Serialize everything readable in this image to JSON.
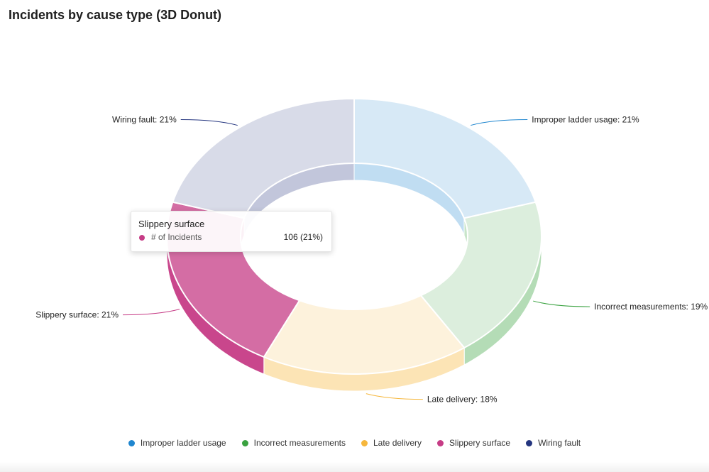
{
  "title": "Incidents by cause type (3D Donut)",
  "tooltip": {
    "title": "Slippery surface",
    "series_label": "# of Incidents",
    "value_text": "106  (21%)",
    "color": "#c63c86"
  },
  "chart_data": {
    "type": "pie",
    "variant": "3d-donut",
    "title": "Incidents by cause type (3D Donut)",
    "series_name": "# of Incidents",
    "slices": [
      {
        "name": "Improper ladder usage",
        "percent": 21,
        "label": "Improper ladder usage: 21%",
        "color": "#1f86cf"
      },
      {
        "name": "Incorrect measurements",
        "percent": 19,
        "label": "Incorrect measurements: 19%",
        "color": "#3aa240"
      },
      {
        "name": "Late delivery",
        "percent": 18,
        "label": "Late delivery: 18%",
        "color": "#f6b73c"
      },
      {
        "name": "Slippery surface",
        "percent": 21,
        "value": 106,
        "label": "Slippery surface: 21%",
        "color": "#c63c86"
      },
      {
        "name": "Wiring fault",
        "percent": 21,
        "label": "Wiring fault: 21%",
        "color": "#24357f"
      }
    ],
    "highlighted": "Slippery surface",
    "legend": "bottom-center"
  }
}
